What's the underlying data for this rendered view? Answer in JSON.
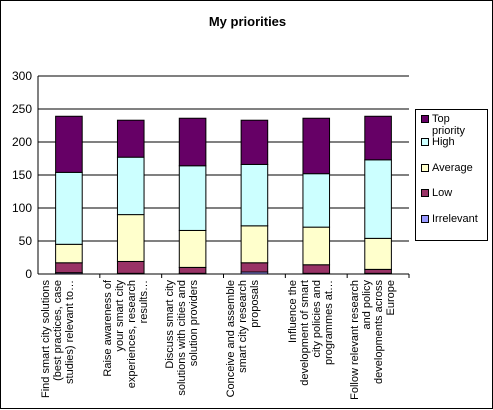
{
  "chart_data": {
    "type": "bar",
    "stacked": true,
    "title": "My priorities",
    "categories": [
      "Find smart city solutions (best practices, case studies) relevant to…",
      "Raise awareness of your smart city experiences, research results…",
      "Discuss smart city solutions with cities and solution providers",
      "Conceive and assemble smart city research proposals",
      "Influence the development of smart city policies and programmes at…",
      "Follow relevant research and policy developments across Europe"
    ],
    "series": [
      {
        "name": "Irrelevant",
        "color": "#9999ff",
        "values": [
          2,
          1,
          1,
          3,
          1,
          1
        ]
      },
      {
        "name": "Low",
        "color": "#993366",
        "values": [
          15,
          18,
          9,
          14,
          13,
          6
        ]
      },
      {
        "name": "Average",
        "color": "#ffffcc",
        "values": [
          28,
          71,
          56,
          56,
          57,
          47
        ]
      },
      {
        "name": "High",
        "color": "#ccffff",
        "values": [
          109,
          87,
          98,
          93,
          81,
          119
        ]
      },
      {
        "name": "Top priority",
        "color": "#660066",
        "values": [
          85,
          56,
          72,
          67,
          84,
          66
        ]
      }
    ],
    "ylim": [
      0,
      300
    ],
    "yticks": [
      0,
      50,
      100,
      150,
      200,
      250,
      300
    ],
    "grid": true,
    "legend": "right"
  }
}
